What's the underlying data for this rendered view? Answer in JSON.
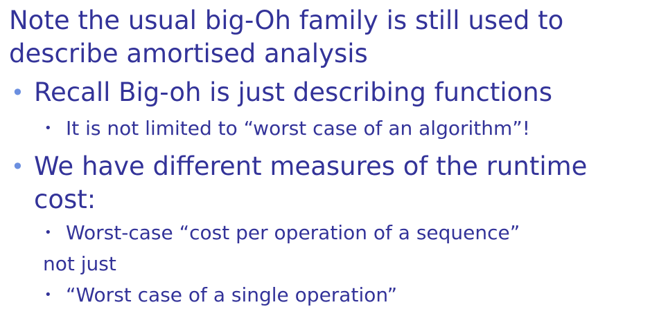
{
  "slide": {
    "heading_line_1": "Note the usual big-Oh family is still used to",
    "heading_line_2": "describe amortised analysis",
    "bullet_1": "Recall Big-oh is just describing functions",
    "bullet_1_sub_1": "It is not limited to “worst case of an algorithm”!",
    "bullet_2_line_1": "We have different measures of the runtime",
    "bullet_2_line_2": "cost:",
    "bullet_2_sub_1": "Worst-case “cost per operation of a sequence”",
    "bullet_2_between": "not just",
    "bullet_2_sub_2": "“Worst case of a single operation”",
    "bullet_glyph_l1": "•",
    "bullet_glyph_l2": "•"
  },
  "colors": {
    "text": "#333399",
    "bullet_l1": "#6b8fe0",
    "background": "#ffffff"
  }
}
